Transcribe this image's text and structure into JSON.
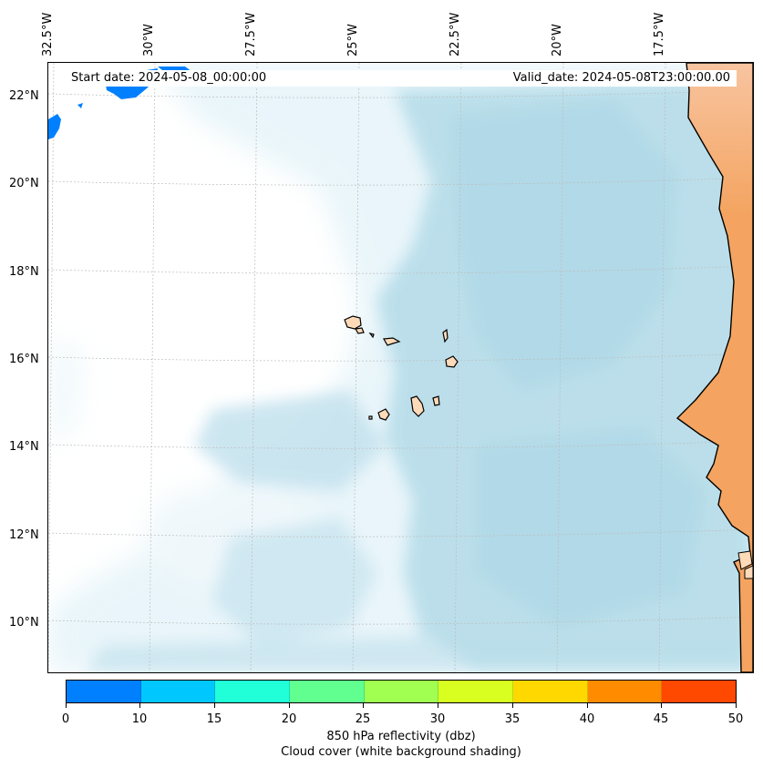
{
  "map": {
    "start_date": "Start date: 2024-05-08_00:00:00",
    "valid_date": "Valid_date: 2024-05-08T23:00:00.00",
    "lon_labels": [
      "32.5°W",
      "30°W",
      "27.5°W",
      "25°W",
      "22.5°W",
      "20°W",
      "17.5°W"
    ],
    "lat_labels": [
      "22°N",
      "20°N",
      "18°N",
      "16°N",
      "14°N",
      "12°N",
      "10°N"
    ],
    "colors": {
      "cloud": "#add8e6",
      "land": "#f4a460",
      "island": "#ffdab9",
      "coast": "#000000"
    }
  },
  "colorbar": {
    "ticks": [
      "0",
      "10",
      "15",
      "20",
      "25",
      "30",
      "35",
      "40",
      "45",
      "50"
    ],
    "colors": [
      "#0080ff",
      "#00c8ff",
      "#20ffd8",
      "#60ff90",
      "#a0ff50",
      "#d8ff20",
      "#ffd800",
      "#ff8c00",
      "#ff4800"
    ],
    "label_line1": "850 hPa reflectivity (dbz)",
    "label_line2": "Cloud cover (white background shading)"
  }
}
